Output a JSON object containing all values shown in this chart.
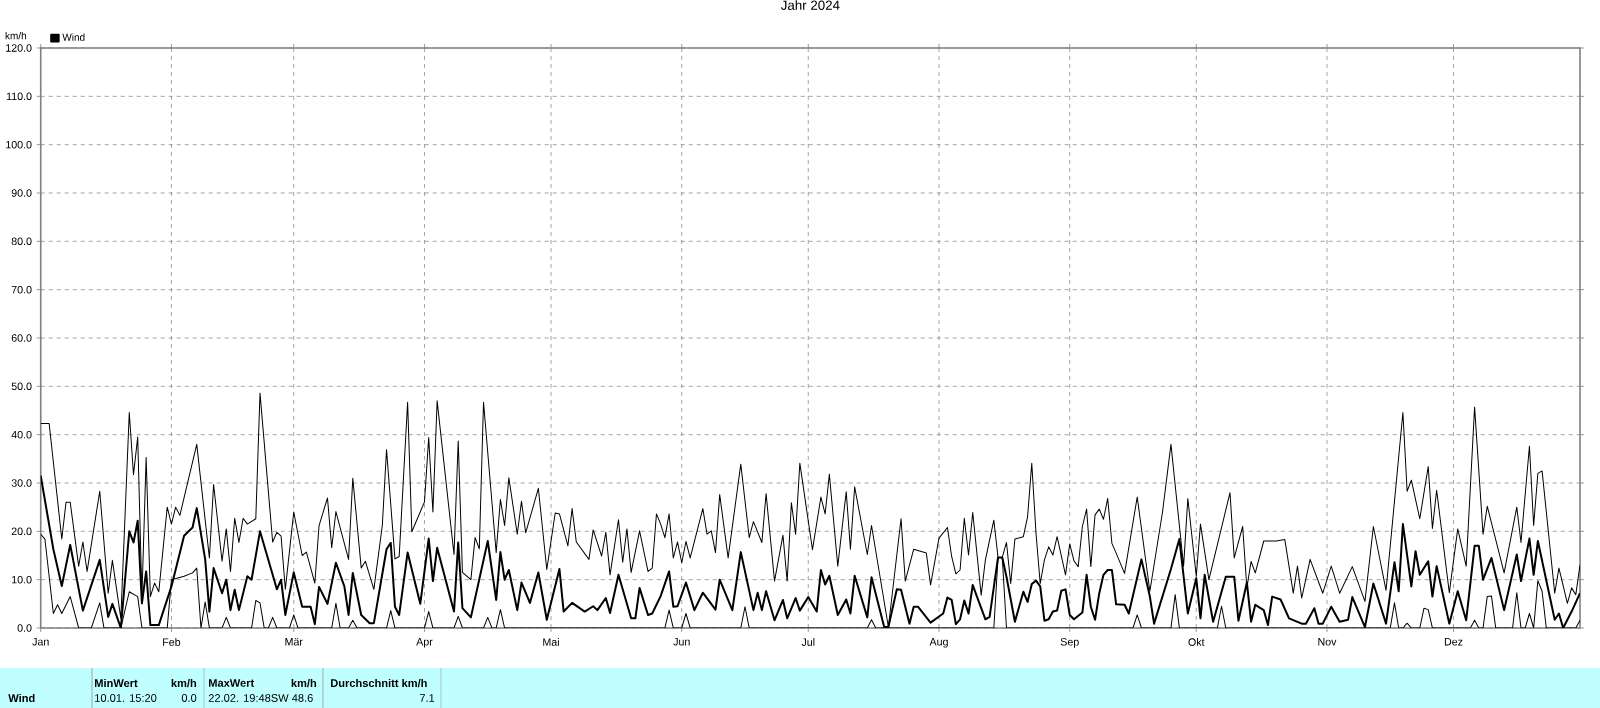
{
  "chart_data": {
    "type": "line",
    "title": "Jahr 2024",
    "ylabel": "km/h",
    "xlim": [
      "2024-01-01",
      "2024-12-31"
    ],
    "xticks": [
      {
        "value": "2024-01-01",
        "label": "Jan"
      },
      {
        "value": "2024-02-01",
        "label": "Feb"
      },
      {
        "value": "2024-03-01",
        "label": "Mär"
      },
      {
        "value": "2024-04-01",
        "label": "Apr"
      },
      {
        "value": "2024-05-01",
        "label": "Mai"
      },
      {
        "value": "2024-06-01",
        "label": "Jun"
      },
      {
        "value": "2024-07-01",
        "label": "Jul"
      },
      {
        "value": "2024-08-01",
        "label": "Aug"
      },
      {
        "value": "2024-09-01",
        "label": "Sep"
      },
      {
        "value": "2024-10-01",
        "label": "Okt"
      },
      {
        "value": "2024-11-01",
        "label": "Nov"
      },
      {
        "value": "2024-12-01",
        "label": "Dez"
      }
    ],
    "ylim": [
      0,
      120
    ],
    "yticks": [
      {
        "value": 0,
        "label": "0.0"
      },
      {
        "value": 10,
        "label": "10.0"
      },
      {
        "value": 20,
        "label": "20.0"
      },
      {
        "value": 30,
        "label": "30.0"
      },
      {
        "value": 40,
        "label": "40.0"
      },
      {
        "value": 50,
        "label": "50.0"
      },
      {
        "value": 60,
        "label": "60.0"
      },
      {
        "value": 70,
        "label": "70.0"
      },
      {
        "value": 80,
        "label": "80.0"
      },
      {
        "value": 90,
        "label": "90.0"
      },
      {
        "value": 100,
        "label": "100.0"
      },
      {
        "value": 110,
        "label": "110.0"
      },
      {
        "value": 120,
        "label": "120.0"
      }
    ],
    "grid": true,
    "legend": "top left",
    "series": [
      {
        "color": "#000000",
        "x": [
          "2024-01-01",
          "2024-01-03",
          "2024-01-06",
          "2024-01-07",
          "2024-01-08",
          "2024-01-10",
          "2024-01-11",
          "2024-01-12",
          "2024-01-15",
          "2024-01-17",
          "2024-01-18",
          "2024-01-20",
          "2024-01-22",
          "2024-01-23",
          "2024-01-24",
          "2024-01-25",
          "2024-01-26",
          "2024-01-27",
          "2024-01-28",
          "2024-01-29",
          "2024-01-31",
          "2024-02-01",
          "2024-02-02",
          "2024-02-03",
          "2024-02-07",
          "2024-02-10",
          "2024-02-11",
          "2024-02-13",
          "2024-02-14",
          "2024-02-15",
          "2024-02-16",
          "2024-02-17",
          "2024-02-18",
          "2024-02-19",
          "2024-02-21",
          "2024-02-22",
          "2024-02-25",
          "2024-02-26",
          "2024-02-27",
          "2024-02-28",
          "2024-03-01",
          "2024-03-03",
          "2024-03-04",
          "2024-03-06",
          "2024-03-07",
          "2024-03-09",
          "2024-03-10",
          "2024-03-11",
          "2024-03-14",
          "2024-03-15",
          "2024-03-17",
          "2024-03-18",
          "2024-03-20",
          "2024-03-22",
          "2024-03-23",
          "2024-03-25",
          "2024-03-26",
          "2024-03-28",
          "2024-03-29",
          "2024-04-01",
          "2024-04-02",
          "2024-04-03",
          "2024-04-04",
          "2024-04-08",
          "2024-04-09",
          "2024-04-10",
          "2024-04-12",
          "2024-04-13",
          "2024-04-14",
          "2024-04-15",
          "2024-04-18",
          "2024-04-19",
          "2024-04-20",
          "2024-04-21",
          "2024-04-23",
          "2024-04-24",
          "2024-04-25",
          "2024-04-28",
          "2024-04-30",
          "2024-05-02",
          "2024-05-03",
          "2024-05-05",
          "2024-05-06",
          "2024-05-07",
          "2024-05-10",
          "2024-05-11",
          "2024-05-13",
          "2024-05-14",
          "2024-05-15",
          "2024-05-17",
          "2024-05-18",
          "2024-05-19",
          "2024-05-20",
          "2024-05-22",
          "2024-05-24",
          "2024-05-25",
          "2024-05-26",
          "2024-05-27",
          "2024-05-28",
          "2024-05-29",
          "2024-05-30",
          "2024-05-31",
          "2024-06-01",
          "2024-06-02",
          "2024-06-03",
          "2024-06-06",
          "2024-06-07",
          "2024-06-08",
          "2024-06-09",
          "2024-06-10",
          "2024-06-12",
          "2024-06-15",
          "2024-06-17",
          "2024-06-18",
          "2024-06-20",
          "2024-06-21",
          "2024-06-23",
          "2024-06-25",
          "2024-06-26",
          "2024-06-27",
          "2024-06-28",
          "2024-06-29",
          "2024-07-02",
          "2024-07-04",
          "2024-07-05",
          "2024-07-06",
          "2024-07-08",
          "2024-07-10",
          "2024-07-11",
          "2024-07-12",
          "2024-07-15",
          "2024-07-16",
          "2024-07-20",
          "2024-07-23",
          "2024-07-24",
          "2024-07-26",
          "2024-07-29",
          "2024-07-30",
          "2024-08-01",
          "2024-08-03",
          "2024-08-04",
          "2024-08-05",
          "2024-08-06",
          "2024-08-07",
          "2024-08-08",
          "2024-08-09",
          "2024-08-11",
          "2024-08-12",
          "2024-08-14",
          "2024-08-15",
          "2024-08-16",
          "2024-08-17",
          "2024-08-18",
          "2024-08-19",
          "2024-08-21",
          "2024-08-22",
          "2024-08-23",
          "2024-08-24",
          "2024-08-25",
          "2024-08-26",
          "2024-08-27",
          "2024-08-28",
          "2024-08-29",
          "2024-08-31",
          "2024-09-01",
          "2024-09-02",
          "2024-09-03",
          "2024-09-04",
          "2024-09-05",
          "2024-09-06",
          "2024-09-07",
          "2024-09-08",
          "2024-09-09",
          "2024-09-10",
          "2024-09-11",
          "2024-09-12",
          "2024-09-14",
          "2024-09-17",
          "2024-09-20",
          "2024-09-23",
          "2024-09-25",
          "2024-09-28",
          "2024-09-29",
          "2024-10-01",
          "2024-10-02",
          "2024-10-04",
          "2024-10-09",
          "2024-10-10",
          "2024-10-12",
          "2024-10-13",
          "2024-10-14",
          "2024-10-15",
          "2024-10-17",
          "2024-10-20",
          "2024-10-22",
          "2024-10-24",
          "2024-10-25",
          "2024-10-26",
          "2024-10-28",
          "2024-10-31",
          "2024-11-02",
          "2024-11-04",
          "2024-11-07",
          "2024-11-10",
          "2024-11-12",
          "2024-11-15",
          "2024-11-19",
          "2024-11-20",
          "2024-11-21",
          "2024-11-23",
          "2024-11-25",
          "2024-11-26",
          "2024-11-27",
          "2024-11-30",
          "2024-12-02",
          "2024-12-04",
          "2024-12-06",
          "2024-12-08",
          "2024-12-09",
          "2024-12-13",
          "2024-12-16",
          "2024-12-17",
          "2024-12-19",
          "2024-12-20",
          "2024-12-21",
          "2024-12-22",
          "2024-12-25",
          "2024-12-26",
          "2024-12-28",
          "2024-12-29",
          "2024-12-30",
          "2024-12-31"
        ],
        "values": [
          42.3,
          42.3,
          18.4,
          26,
          26,
          12.8,
          17.8,
          11.7,
          28.3,
          7.2,
          14,
          2,
          44.6,
          31.7,
          39.5,
          6.5,
          35.3,
          6.5,
          9.3,
          7.5,
          25,
          21.5,
          25,
          23.3,
          38,
          14.5,
          29.7,
          13.8,
          20.5,
          11.7,
          22.7,
          17.7,
          22.7,
          21.5,
          22.6,
          48.6,
          17.8,
          19.8,
          19,
          8,
          24,
          15,
          15.7,
          9.3,
          21.2,
          26.9,
          16.6,
          24.1,
          14.2,
          31,
          12.4,
          13.8,
          8,
          21.2,
          36.9,
          14.3,
          14.8,
          46.7,
          19.9,
          26.1,
          39.4,
          24,
          47,
          15.2,
          38.7,
          11.5,
          10,
          18.7,
          16.4,
          46.7,
          15.6,
          26.6,
          21.2,
          31.1,
          19.4,
          26.2,
          19.7,
          28.9,
          12.1,
          23.8,
          23.6,
          17,
          24.7,
          17.8,
          14.2,
          20.3,
          14.9,
          19.8,
          11,
          22.4,
          13.6,
          20.5,
          11.5,
          20.1,
          11.7,
          12.4,
          23.6,
          21.5,
          18.7,
          23.6,
          14.5,
          17.8,
          13.5,
          17.9,
          14.5,
          24.7,
          19.4,
          20.1,
          15.6,
          27.6,
          14.5,
          33.9,
          18.7,
          22,
          17.7,
          27.8,
          9.7,
          19.2,
          9.7,
          25.9,
          19.4,
          34.1,
          16.2,
          27.1,
          23.6,
          31.8,
          12.8,
          28.2,
          16.3,
          29.2,
          15.2,
          21.2,
          0.2,
          22.6,
          9.7,
          16.3,
          15.5,
          8.9,
          18.6,
          20.8,
          14.8,
          11.2,
          12,
          22.7,
          15.1,
          23.9,
          6.8,
          14.1,
          22.3,
          14.6,
          14.6,
          17.7,
          9.2,
          18.4,
          18.9,
          23,
          34.1,
          19.6,
          9.2,
          14.1,
          16.8,
          15.1,
          18.9,
          11,
          17.4,
          13.9,
          12.7,
          21,
          24.6,
          12.7,
          23.4,
          24.6,
          22.5,
          26.8,
          17.5,
          15.5,
          11.3,
          27.1,
          7.6,
          24,
          38,
          12.8,
          26.8,
          10.7,
          21.5,
          10,
          28,
          14.5,
          21,
          8.3,
          13.8,
          11.4,
          18,
          18,
          18.3,
          7.2,
          12.8,
          6.2,
          14.2,
          7.2,
          12.8,
          7.2,
          12.7,
          5.5,
          21,
          7.8,
          44.6,
          28.3,
          30.6,
          22.6,
          33.4,
          20.6,
          28.5,
          7.3,
          20.5,
          12.8,
          45.7,
          19.4,
          25.2,
          11.4,
          25,
          17.7,
          37.6,
          21.2,
          32,
          32.5,
          7.2,
          12.4,
          5.1,
          8.3,
          6.9,
          13.1
        ]
      },
      {
        "color": "#000000",
        "x": [
          "2024-01-01",
          "2024-01-02",
          "2024-01-04",
          "2024-01-05",
          "2024-01-06",
          "2024-01-08",
          "2024-01-10",
          "2024-01-13",
          "2024-01-15",
          "2024-01-16",
          "2024-01-20",
          "2024-01-22",
          "2024-01-24",
          "2024-01-25",
          "2024-01-31",
          "2024-02-01",
          "2024-02-04",
          "2024-02-06",
          "2024-02-07",
          "2024-02-08",
          "2024-02-09",
          "2024-02-10",
          "2024-02-13",
          "2024-02-14",
          "2024-02-15",
          "2024-02-20",
          "2024-02-21",
          "2024-02-22",
          "2024-02-23",
          "2024-02-24",
          "2024-02-25",
          "2024-02-26",
          "2024-02-29",
          "2024-03-01",
          "2024-03-02",
          "2024-03-10",
          "2024-03-11",
          "2024-03-12",
          "2024-03-14",
          "2024-03-15",
          "2024-03-16",
          "2024-03-23",
          "2024-03-24",
          "2024-03-25",
          "2024-04-01",
          "2024-04-02",
          "2024-04-03",
          "2024-04-08",
          "2024-04-09",
          "2024-04-10",
          "2024-04-15",
          "2024-04-16",
          "2024-04-17",
          "2024-04-18",
          "2024-04-19",
          "2024-04-20",
          "2024-05-28",
          "2024-05-29",
          "2024-05-30",
          "2024-06-01",
          "2024-06-02",
          "2024-06-03",
          "2024-06-15",
          "2024-06-16",
          "2024-06-17",
          "2024-07-15",
          "2024-07-16",
          "2024-07-17",
          "2024-08-14",
          "2024-08-15",
          "2024-08-16",
          "2024-08-17",
          "2024-09-16",
          "2024-09-17",
          "2024-09-18",
          "2024-09-25",
          "2024-09-26",
          "2024-09-27",
          "2024-10-06",
          "2024-10-07",
          "2024-10-08",
          "2024-11-16",
          "2024-11-17",
          "2024-11-18",
          "2024-11-19",
          "2024-11-20",
          "2024-11-21",
          "2024-11-23",
          "2024-11-24",
          "2024-11-25",
          "2024-11-26",
          "2024-12-05",
          "2024-12-06",
          "2024-12-07",
          "2024-12-08",
          "2024-12-09",
          "2024-12-10",
          "2024-12-11",
          "2024-12-15",
          "2024-12-16",
          "2024-12-17",
          "2024-12-18",
          "2024-12-19",
          "2024-12-20",
          "2024-12-21",
          "2024-12-22",
          "2024-12-23",
          "2024-12-30",
          "2024-12-31"
        ],
        "values": [
          19.4,
          18.4,
          3,
          4.8,
          3,
          6.5,
          0,
          0,
          5.2,
          0,
          0,
          7.5,
          6.5,
          0,
          0,
          10,
          10.7,
          11.4,
          12.4,
          0,
          5.4,
          0,
          0,
          2.2,
          0,
          0,
          5.7,
          5.2,
          0,
          0,
          2.2,
          0,
          0,
          2.7,
          0,
          0,
          5.1,
          0,
          0,
          1.6,
          0,
          0,
          3.6,
          0,
          0,
          3.4,
          0,
          0,
          2.4,
          0,
          0,
          2.2,
          0,
          0,
          3.8,
          0,
          0,
          3.7,
          0,
          0,
          3,
          0,
          0,
          4.4,
          0,
          0,
          1.7,
          0,
          0,
          14.6,
          14.6,
          0,
          0,
          2.7,
          0,
          0,
          6.9,
          0,
          0,
          4.5,
          0,
          0,
          5.2,
          0,
          0,
          1,
          0,
          0,
          4.1,
          3.8,
          0,
          0,
          1.6,
          0,
          0,
          6.5,
          6.6,
          0,
          0,
          7.3,
          0,
          0,
          3,
          0,
          9.8,
          7.6,
          0,
          0,
          1.6
        ]
      },
      {
        "name": "Wind",
        "color": "#000000",
        "x": [
          "2024-01-01",
          "2024-01-04",
          "2024-01-06",
          "2024-01-08",
          "2024-01-11",
          "2024-01-15",
          "2024-01-17",
          "2024-01-18",
          "2024-01-20",
          "2024-01-22",
          "2024-01-23",
          "2024-01-24",
          "2024-01-25",
          "2024-01-26",
          "2024-01-27",
          "2024-01-29",
          "2024-02-01",
          "2024-02-04",
          "2024-02-06",
          "2024-02-07",
          "2024-02-09",
          "2024-02-10",
          "2024-02-11",
          "2024-02-13",
          "2024-02-14",
          "2024-02-15",
          "2024-02-16",
          "2024-02-17",
          "2024-02-19",
          "2024-02-20",
          "2024-02-22",
          "2024-02-26",
          "2024-02-27",
          "2024-02-28",
          "2024-03-01",
          "2024-03-03",
          "2024-03-05",
          "2024-03-06",
          "2024-03-07",
          "2024-03-09",
          "2024-03-11",
          "2024-03-13",
          "2024-03-14",
          "2024-03-15",
          "2024-03-17",
          "2024-03-19",
          "2024-03-20",
          "2024-03-23",
          "2024-03-24",
          "2024-03-25",
          "2024-03-26",
          "2024-03-28",
          "2024-03-31",
          "2024-04-02",
          "2024-04-03",
          "2024-04-04",
          "2024-04-08",
          "2024-04-09",
          "2024-04-10",
          "2024-04-12",
          "2024-04-16",
          "2024-04-18",
          "2024-04-19",
          "2024-04-20",
          "2024-04-21",
          "2024-04-23",
          "2024-04-24",
          "2024-04-26",
          "2024-04-28",
          "2024-04-30",
          "2024-05-03",
          "2024-05-04",
          "2024-05-06",
          "2024-05-09",
          "2024-05-11",
          "2024-05-12",
          "2024-05-14",
          "2024-05-15",
          "2024-05-17",
          "2024-05-20",
          "2024-05-21",
          "2024-05-22",
          "2024-05-24",
          "2024-05-25",
          "2024-05-27",
          "2024-05-29",
          "2024-05-30",
          "2024-05-31",
          "2024-06-02",
          "2024-06-04",
          "2024-06-06",
          "2024-06-09",
          "2024-06-10",
          "2024-06-13",
          "2024-06-15",
          "2024-06-18",
          "2024-06-19",
          "2024-06-20",
          "2024-06-21",
          "2024-06-23",
          "2024-06-25",
          "2024-06-26",
          "2024-06-28",
          "2024-06-29",
          "2024-07-01",
          "2024-07-03",
          "2024-07-04",
          "2024-07-05",
          "2024-07-06",
          "2024-07-08",
          "2024-07-10",
          "2024-07-11",
          "2024-07-12",
          "2024-07-15",
          "2024-07-16",
          "2024-07-19",
          "2024-07-20",
          "2024-07-22",
          "2024-07-23",
          "2024-07-25",
          "2024-07-26",
          "2024-07-27",
          "2024-07-30",
          "2024-08-02",
          "2024-08-03",
          "2024-08-04",
          "2024-08-05",
          "2024-08-06",
          "2024-08-07",
          "2024-08-08",
          "2024-08-09",
          "2024-08-10",
          "2024-08-12",
          "2024-08-13",
          "2024-08-15",
          "2024-08-16",
          "2024-08-17",
          "2024-08-19",
          "2024-08-21",
          "2024-08-22",
          "2024-08-23",
          "2024-08-24",
          "2024-08-25",
          "2024-08-26",
          "2024-08-27",
          "2024-08-28",
          "2024-08-29",
          "2024-08-30",
          "2024-08-31",
          "2024-09-01",
          "2024-09-02",
          "2024-09-04",
          "2024-09-05",
          "2024-09-06",
          "2024-09-07",
          "2024-09-08",
          "2024-09-09",
          "2024-09-10",
          "2024-09-11",
          "2024-09-12",
          "2024-09-14",
          "2024-09-15",
          "2024-09-18",
          "2024-09-20",
          "2024-09-21",
          "2024-09-25",
          "2024-09-27",
          "2024-09-29",
          "2024-10-01",
          "2024-10-02",
          "2024-10-03",
          "2024-10-05",
          "2024-10-08",
          "2024-10-10",
          "2024-10-11",
          "2024-10-13",
          "2024-10-14",
          "2024-10-15",
          "2024-10-17",
          "2024-10-18",
          "2024-10-19",
          "2024-10-21",
          "2024-10-23",
          "2024-10-26",
          "2024-10-27",
          "2024-10-29",
          "2024-10-30",
          "2024-10-31",
          "2024-11-02",
          "2024-11-04",
          "2024-11-06",
          "2024-11-07",
          "2024-11-10",
          "2024-11-12",
          "2024-11-15",
          "2024-11-17",
          "2024-11-18",
          "2024-11-19",
          "2024-11-21",
          "2024-11-22",
          "2024-11-23",
          "2024-11-25",
          "2024-11-26",
          "2024-11-27",
          "2024-11-30",
          "2024-12-02",
          "2024-12-04",
          "2024-12-06",
          "2024-12-07",
          "2024-12-08",
          "2024-12-10",
          "2024-12-13",
          "2024-12-16",
          "2024-12-17",
          "2024-12-19",
          "2024-12-20",
          "2024-12-21",
          "2024-12-25",
          "2024-12-26",
          "2024-12-27",
          "2024-12-29",
          "2024-12-31"
        ],
        "values": [
          31.5,
          16.3,
          8.7,
          17.2,
          3.6,
          14.1,
          2.3,
          5,
          0,
          20,
          17.7,
          22.2,
          5.1,
          11.7,
          0.6,
          0.6,
          8.6,
          19.1,
          20.8,
          24.8,
          14.2,
          3.4,
          12.4,
          7.2,
          10,
          3.7,
          7.9,
          3.7,
          10.7,
          10,
          20,
          8,
          10,
          2.7,
          11.5,
          4.4,
          4.4,
          0.8,
          8.5,
          5,
          13.5,
          8.6,
          2.7,
          11.4,
          2.7,
          1,
          1,
          16.3,
          17.6,
          4.4,
          2.7,
          15.6,
          5,
          18.5,
          9.7,
          16.6,
          3.4,
          17.7,
          4.1,
          2.2,
          18,
          5.8,
          15.7,
          10,
          12,
          3.7,
          9.4,
          5.2,
          11.5,
          1.7,
          12.2,
          3.4,
          5.2,
          3.4,
          4.5,
          3.7,
          6.2,
          3.1,
          11,
          2,
          2,
          8.3,
          2.7,
          3,
          6.6,
          11.7,
          4.4,
          4.5,
          9.4,
          3.7,
          7.3,
          3.8,
          10,
          3.7,
          15.7,
          3.7,
          7.3,
          3.7,
          7.6,
          1.6,
          5.8,
          2,
          6.2,
          3.6,
          6.4,
          3.4,
          12,
          9,
          10.8,
          2.7,
          5.9,
          3,
          10.8,
          2.2,
          10.5,
          0.2,
          0.2,
          8,
          7.9,
          0.9,
          4.4,
          4.4,
          1.1,
          3,
          6.3,
          5.8,
          0.8,
          1.8,
          5.7,
          3,
          8.9,
          6.5,
          1.8,
          2.3,
          14.6,
          14.6,
          10.6,
          1.3,
          7.5,
          5.4,
          9.1,
          9.8,
          8.6,
          1.5,
          1.8,
          3.4,
          3.6,
          7.7,
          8,
          2.7,
          1.8,
          3.2,
          11,
          4.4,
          1.7,
          7.2,
          11,
          12,
          12,
          4.9,
          4.8,
          3,
          14.2,
          6.5,
          0.9,
          12.2,
          18.4,
          3,
          10.3,
          2,
          11,
          1.3,
          10.6,
          10.6,
          1.5,
          9.4,
          1.3,
          4.8,
          3.7,
          0.6,
          6.5,
          5.9,
          2,
          0.9,
          0.9,
          4.1,
          0.9,
          0.9,
          4.4,
          1.3,
          1.7,
          6.4,
          0.2,
          9.2,
          0.9,
          13.6,
          7.6,
          21.5,
          8.6,
          15.9,
          11,
          13.8,
          6.5,
          12.8,
          0.9,
          7.6,
          1.6,
          17,
          17,
          10,
          14.5,
          3.7,
          15.2,
          9.7,
          18.5,
          11,
          18,
          1.7,
          3,
          0,
          3.4,
          7.2
        ]
      }
    ],
    "annotations": [
      "Wind",
      "MinWert",
      "km/h",
      "10.01. 15:20",
      "0.0",
      "MaxWert",
      "km/h",
      "22.02. 19:48SW 48.6",
      "Durchschnitt km/h",
      "7.1"
    ]
  }
}
